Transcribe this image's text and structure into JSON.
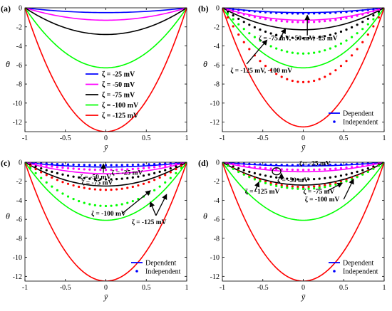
{
  "chart_data": [
    {
      "panel_label": "(a)",
      "type": "line",
      "xlabel": "ȳ",
      "ylabel": "θ",
      "xlim": [
        -1,
        1
      ],
      "ylim": [
        -13,
        0
      ],
      "xticks": [
        "-1",
        "-0.5",
        "0",
        "0.5",
        "1"
      ],
      "yticks": [
        "0",
        "-2",
        "-4",
        "-6",
        "-8",
        "-10",
        "-12"
      ],
      "ytick_values": [
        0,
        -2,
        -4,
        -6,
        -8,
        -10,
        -12
      ],
      "legend_position": "center",
      "series": [
        {
          "name": "ζ = -25 mV",
          "style": "solid",
          "color": "#0000ff",
          "center": -0.5
        },
        {
          "name": "ζ = -50 mV",
          "style": "solid",
          "color": "#ff00ff",
          "center": -1.3
        },
        {
          "name": "ζ = -75 mV",
          "style": "solid",
          "color": "#000000",
          "center": -2.8
        },
        {
          "name": "ζ = -100 mV",
          "style": "solid",
          "color": "#00ff00",
          "center": -6.3
        },
        {
          "name": "ζ = -125 mV",
          "style": "solid",
          "color": "#ff0000",
          "center": -13.0
        }
      ],
      "annotations": []
    },
    {
      "panel_label": "(b)",
      "type": "line",
      "xlabel": "ȳ",
      "ylabel": "θ",
      "xlim": [
        -1,
        1
      ],
      "ylim": [
        -13,
        0
      ],
      "xticks": [
        "-1",
        "-0.5",
        "0",
        "0.5",
        "1"
      ],
      "yticks": [
        "0",
        "-2",
        "-4",
        "-6",
        "-8",
        "-10",
        "-12"
      ],
      "ytick_values": [
        0,
        -2,
        -4,
        -6,
        -8,
        -10,
        -12
      ],
      "legend_position": "bottom-right",
      "legend": [
        {
          "label": "Dependent",
          "style": "solid",
          "color": "#0000ff"
        },
        {
          "label": "Independent",
          "style": "dotted",
          "color": "#0000ff"
        }
      ],
      "series": [
        {
          "style": "solid",
          "color": "#0000ff",
          "center": -0.5
        },
        {
          "style": "solid",
          "color": "#ff00ff",
          "center": -1.3
        },
        {
          "style": "solid",
          "color": "#000000",
          "center": -2.3
        },
        {
          "style": "solid",
          "color": "#00ff00",
          "center": -6.3
        },
        {
          "style": "solid",
          "color": "#ff0000",
          "center": -12.5
        },
        {
          "style": "dotted",
          "color": "#0000ff",
          "center": -0.6
        },
        {
          "style": "dotted",
          "color": "#ff00ff",
          "center": -1.5
        },
        {
          "style": "dotted",
          "color": "#000000",
          "center": -3.2
        },
        {
          "style": "dotted",
          "color": "#00ff00",
          "center": -4.8
        },
        {
          "style": "dotted",
          "color": "#ff0000",
          "center": -7.8
        }
      ],
      "annotations": [
        {
          "text": "ζ = -75 mV, -50 mV, -25 mV",
          "x": -0.55,
          "y": -3.4
        },
        {
          "text": "ζ = -125 mV, -100 mV",
          "x": -0.9,
          "y": -6.8
        }
      ],
      "arrows": [
        {
          "from": [
            0.05,
            -2.9
          ],
          "to": [
            0.05,
            -0.8
          ]
        },
        {
          "from": [
            -0.3,
            -3.4
          ],
          "to": [
            -0.22,
            -2.2
          ]
        },
        {
          "from": [
            -0.7,
            -5.9
          ],
          "to": [
            -0.45,
            -3.4
          ]
        }
      ]
    },
    {
      "panel_label": "(c)",
      "type": "line",
      "xlabel": "ȳ",
      "ylabel": "θ",
      "xlim": [
        -1,
        1
      ],
      "ylim": [
        -12.5,
        0
      ],
      "xticks": [
        "-1",
        "-0.5",
        "0",
        "0.5",
        "1"
      ],
      "yticks": [
        "0",
        "-2",
        "-4",
        "-6",
        "-8",
        "-10",
        "-12"
      ],
      "ytick_values": [
        0,
        -2,
        -4,
        -6,
        -8,
        -10,
        -12
      ],
      "legend_position": "bottom-right",
      "legend": [
        {
          "label": "Dependent",
          "style": "solid",
          "color": "#0000ff"
        },
        {
          "label": "Independent",
          "style": "dotted",
          "color": "#0000ff"
        }
      ],
      "series": [
        {
          "style": "solid",
          "color": "#0000ff",
          "center": -0.5
        },
        {
          "style": "solid",
          "color": "#ff00ff",
          "center": -1.2
        },
        {
          "style": "solid",
          "color": "#000000",
          "center": -2.5
        },
        {
          "style": "solid",
          "color": "#00ff00",
          "center": -6.1
        },
        {
          "style": "solid",
          "color": "#ff0000",
          "center": -12.5
        },
        {
          "style": "dotted",
          "color": "#0000ff",
          "center": -0.3
        },
        {
          "style": "dotted",
          "color": "#ff00ff",
          "center": -0.8
        },
        {
          "style": "dotted",
          "color": "#000000",
          "center": -1.8
        },
        {
          "style": "dotted",
          "color": "#ff0000",
          "center": -2.9
        },
        {
          "style": "dotted",
          "color": "#00ff00",
          "center": -4.6
        }
      ],
      "annotations": [
        {
          "text": "ζ = -25 mV",
          "x": 0.07,
          "y": -1.3
        },
        {
          "text": "ζ = -50 mV",
          "x": -0.32,
          "y": -1.75
        },
        {
          "text": "ζ = -75 mV",
          "x": -0.3,
          "y": -2.35
        },
        {
          "text": "ζ = -100 mV",
          "x": -0.18,
          "y": -5.6
        },
        {
          "text": "ζ = -125 mV",
          "x": 0.32,
          "y": -6.5
        }
      ],
      "arrows": [
        {
          "from": [
            -0.03,
            -1.1
          ],
          "to": [
            -0.03,
            -0.2
          ]
        },
        {
          "from": [
            0.2,
            -5.4
          ],
          "to": [
            0.55,
            -3.0
          ]
        },
        {
          "from": [
            0.62,
            -5.6
          ],
          "to": [
            0.55,
            -4.2
          ]
        },
        {
          "from": [
            0.62,
            -5.6
          ],
          "to": [
            0.75,
            -3.4
          ]
        }
      ]
    },
    {
      "panel_label": "(d)",
      "type": "line",
      "xlabel": "ȳ",
      "ylabel": "θ",
      "xlim": [
        -1,
        1
      ],
      "ylim": [
        -12.5,
        0
      ],
      "xticks": [
        "-1",
        "-0.5",
        "0",
        "0.5",
        "1"
      ],
      "yticks": [
        "0",
        "-2",
        "-4",
        "-6",
        "-8",
        "-10",
        "-12"
      ],
      "ytick_values": [
        0,
        -2,
        -4,
        -6,
        -8,
        -10,
        -12
      ],
      "legend_position": "bottom-right",
      "legend": [
        {
          "label": "Dependent",
          "style": "solid",
          "color": "#0000ff"
        },
        {
          "label": "Independent",
          "style": "dotted",
          "color": "#0000ff"
        }
      ],
      "series": [
        {
          "style": "solid",
          "color": "#0000ff",
          "center": -0.4
        },
        {
          "style": "solid",
          "color": "#ff00ff",
          "center": -1.0
        },
        {
          "style": "solid",
          "color": "#000000",
          "center": -2.4
        },
        {
          "style": "solid",
          "color": "#00ff00",
          "center": -6.1
        },
        {
          "style": "solid",
          "color": "#ff0000",
          "center": -12.5
        },
        {
          "style": "dotted",
          "color": "#0000ff",
          "center": -0.3
        },
        {
          "style": "dotted",
          "color": "#ff00ff",
          "center": -0.8
        },
        {
          "style": "dotted",
          "color": "#000000",
          "center": -1.8
        },
        {
          "style": "dotted",
          "color": "#ff0000",
          "center": -2.6
        },
        {
          "style": "dotted",
          "color": "#00ff00",
          "center": -2.8
        }
      ],
      "annotations": [
        {
          "text": "ζ = -25 mV",
          "x": -0.05,
          "y": -0.35
        },
        {
          "text": "ζ = -50 mV",
          "x": -0.32,
          "y": -2.1
        },
        {
          "text": "ζ = -125 mV",
          "x": -0.72,
          "y": -3.3
        },
        {
          "text": "ζ = -75 mV",
          "x": 0.0,
          "y": -3.3
        },
        {
          "text": "ζ = -100 mV",
          "x": 0.02,
          "y": -4.1
        }
      ],
      "arrows": [
        {
          "from": [
            -0.6,
            -3.1
          ],
          "to": [
            -0.55,
            -2.1
          ]
        },
        {
          "from": [
            0.3,
            -3.0
          ],
          "to": [
            0.48,
            -2.2
          ]
        },
        {
          "from": [
            0.5,
            -3.9
          ],
          "to": [
            0.62,
            -1.8
          ]
        },
        {
          "from": [
            -0.27,
            -1.85
          ],
          "to": [
            -0.27,
            -1.2
          ]
        }
      ],
      "circle_marker": {
        "x": -0.33,
        "y": -0.95
      }
    }
  ]
}
